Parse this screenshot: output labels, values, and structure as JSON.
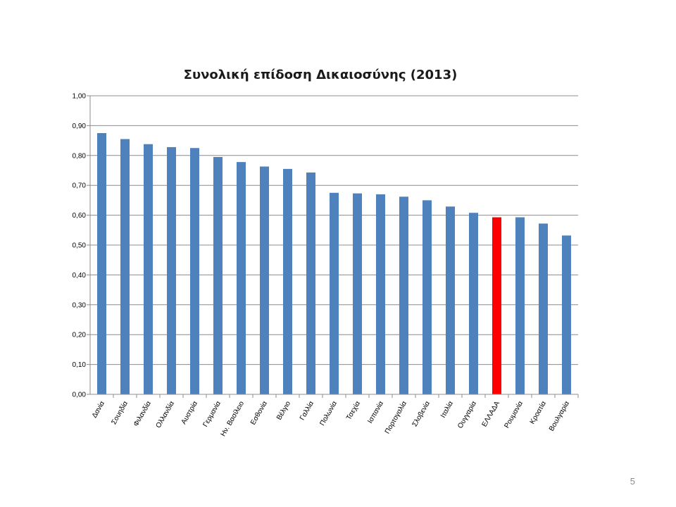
{
  "page_number": "5",
  "colors": {
    "bar": "#4f81bd",
    "highlight": "#ff0000",
    "grid": "#8c8c8c"
  },
  "chart_data": {
    "type": "bar",
    "title": "Συνολική επίδοση Δικαιοσύνης (2013)",
    "xlabel": "",
    "ylabel": "",
    "ylim": [
      0,
      1
    ],
    "yticks": [
      "0,00",
      "0,10",
      "0,20",
      "0,30",
      "0,40",
      "0,50",
      "0,60",
      "0,70",
      "0,80",
      "0,90",
      "1,00"
    ],
    "grid": true,
    "legend": "none",
    "categories": [
      "Δανία",
      "Σουηδία",
      "Φιλανδία",
      "Ολλανδία",
      "Αυστρία",
      "Γερμανία",
      "Ην. Βασίλειο",
      "Εσθονία",
      "Βέλγιο",
      "Γαλλία",
      "Πολωνία",
      "Τσεχία",
      "Ισπανία",
      "Πορτογαλία",
      "Σλοβενία",
      "Ιταλία",
      "Ουγγαρία",
      "ΕΛΛΑΔΑ",
      "Ρουμανία",
      "Κροατία",
      "Βουλγαρία"
    ],
    "values": [
      0.875,
      0.855,
      0.838,
      0.828,
      0.825,
      0.795,
      0.778,
      0.763,
      0.755,
      0.743,
      0.675,
      0.673,
      0.67,
      0.662,
      0.65,
      0.629,
      0.608,
      0.593,
      0.593,
      0.572,
      0.532
    ],
    "highlight": "ΕΛΛΑΔΑ"
  }
}
